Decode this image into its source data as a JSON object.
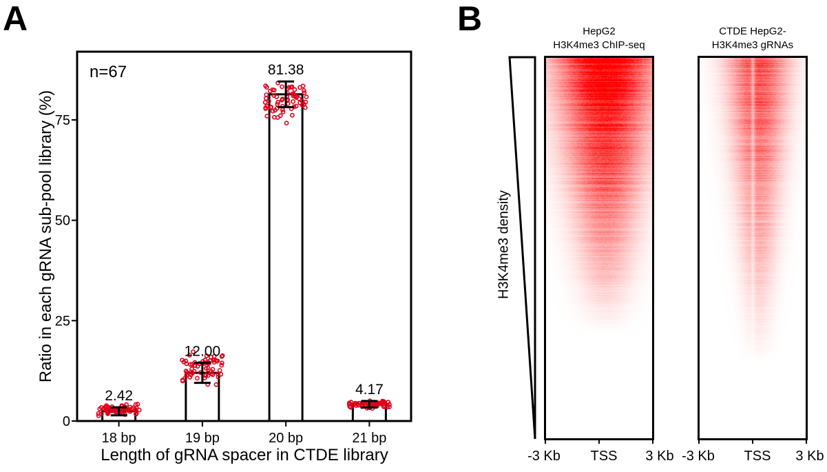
{
  "panels": {
    "a_label": "A",
    "b_label": "B"
  },
  "chart_data": [
    {
      "type": "bar",
      "panel": "A",
      "categories": [
        "18 bp",
        "19 bp",
        "20 bp",
        "21 bp"
      ],
      "values": [
        2.42,
        12.0,
        81.38,
        4.17
      ],
      "data_labels": [
        "2.42",
        "12.00",
        "81.38",
        "4.17"
      ],
      "error_sd": [
        1.0,
        2.5,
        3.2,
        0.8
      ],
      "point_spread": [
        [
          1.0,
          4.5
        ],
        [
          8.5,
          18.0
        ],
        [
          73.0,
          86.5
        ],
        [
          3.0,
          5.3
        ]
      ],
      "points_per_group": 67,
      "annotation": "n=67",
      "xlabel": "Length of gRNA spacer in CTDE library",
      "ylabel": "Ratio in each gRNA sub-pool library (%)",
      "yticks": [
        0,
        25,
        50,
        75
      ],
      "ytick_labels": [
        "0",
        "25",
        "50",
        "75"
      ],
      "ylim": [
        0,
        92
      ],
      "grid": false,
      "colors": {
        "bar_fill": "#ffffff",
        "bar_edge": "#000000",
        "points": "#e0001b",
        "error_bar": "#000000"
      }
    },
    {
      "type": "heatmap",
      "panel": "B",
      "row_axis_label": "H3K4me3 density",
      "heatmaps": [
        {
          "title_line1": "HepG2",
          "title_line2": "H3K4me3 ChIP-seq",
          "xtick_labels": [
            "-3 Kb",
            "TSS",
            "3 Kb"
          ]
        },
        {
          "title_line1": "CTDE HepG2-",
          "title_line2": "H3K4me3 gRNAs",
          "xtick_labels": [
            "-3 Kb",
            "TSS",
            "3 Kb"
          ]
        }
      ],
      "colormap": [
        "#ffffff",
        "#ff0000"
      ]
    }
  ]
}
